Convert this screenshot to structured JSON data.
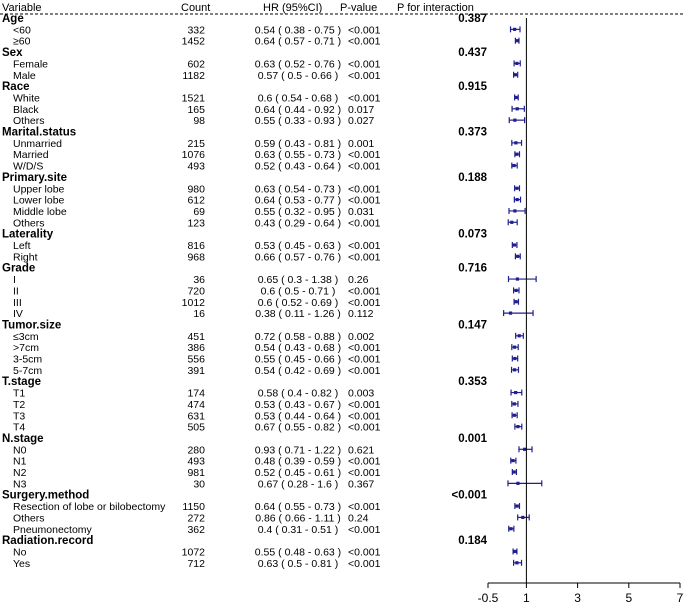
{
  "colors": {
    "ci": "#1f1f8f",
    "point": "#1f1f8f",
    "axis": "#000000",
    "text": "#000000"
  },
  "headers": {
    "variable": "Variable",
    "count": "Count",
    "hr": "HR (95%CI)",
    "pvalue": "P-value",
    "pint": "P for interaction"
  },
  "chart_data": {
    "type": "forest",
    "xlim": [
      -0.5,
      7
    ],
    "xticks": [
      "-0.5",
      "1",
      "3",
      "5",
      "7"
    ],
    "xtick_values": [
      -0.5,
      1,
      3,
      5,
      7
    ],
    "reference_line": 1,
    "groups": [
      {
        "name": "Age",
        "p_interaction": "0.387",
        "rows": [
          {
            "label": "<60",
            "count": "332",
            "hr_text": "0.54 ( 0.38 - 0.75 )",
            "p": "<0.001",
            "hr": 0.54,
            "lo": 0.38,
            "hi": 0.75
          },
          {
            "label": "≥60",
            "count": "1452",
            "hr_text": "0.64 ( 0.57 - 0.71 )",
            "p": "<0.001",
            "hr": 0.64,
            "lo": 0.57,
            "hi": 0.71
          }
        ]
      },
      {
        "name": "Sex",
        "p_interaction": "0.437",
        "rows": [
          {
            "label": "Female",
            "count": "602",
            "hr_text": "0.63 ( 0.52 - 0.76 )",
            "p": "<0.001",
            "hr": 0.63,
            "lo": 0.52,
            "hi": 0.76
          },
          {
            "label": "Male",
            "count": "1182",
            "hr_text": "0.57 ( 0.5 - 0.66 )",
            "p": "<0.001",
            "hr": 0.57,
            "lo": 0.5,
            "hi": 0.66
          }
        ]
      },
      {
        "name": "Race",
        "p_interaction": "0.915",
        "rows": [
          {
            "label": "White",
            "count": "1521",
            "hr_text": "0.6 ( 0.54 - 0.68 )",
            "p": "<0.001",
            "hr": 0.6,
            "lo": 0.54,
            "hi": 0.68
          },
          {
            "label": "Black",
            "count": "165",
            "hr_text": "0.64 ( 0.44 - 0.92 )",
            "p": "0.017",
            "hr": 0.64,
            "lo": 0.44,
            "hi": 0.92
          },
          {
            "label": "Others",
            "count": "98",
            "hr_text": "0.55 ( 0.33 - 0.93 )",
            "p": "0.027",
            "hr": 0.55,
            "lo": 0.33,
            "hi": 0.93
          }
        ]
      },
      {
        "name": "Marital.status",
        "p_interaction": "0.373",
        "rows": [
          {
            "label": "Unmarried",
            "count": "215",
            "hr_text": "0.59 ( 0.43 - 0.81 )",
            "p": "0.001",
            "hr": 0.59,
            "lo": 0.43,
            "hi": 0.81
          },
          {
            "label": "Married",
            "count": "1076",
            "hr_text": "0.63 ( 0.55 - 0.73 )",
            "p": "<0.001",
            "hr": 0.63,
            "lo": 0.55,
            "hi": 0.73
          },
          {
            "label": "W/D/S",
            "count": "493",
            "hr_text": "0.52 ( 0.43 - 0.64 )",
            "p": "<0.001",
            "hr": 0.52,
            "lo": 0.43,
            "hi": 0.64
          }
        ]
      },
      {
        "name": "Primary.site",
        "p_interaction": "0.188",
        "rows": [
          {
            "label": "Upper lobe",
            "count": "980",
            "hr_text": "0.63 ( 0.54 - 0.73 )",
            "p": "<0.001",
            "hr": 0.63,
            "lo": 0.54,
            "hi": 0.73
          },
          {
            "label": "Lower lobe",
            "count": "612",
            "hr_text": "0.64 ( 0.53 - 0.77 )",
            "p": "<0.001",
            "hr": 0.64,
            "lo": 0.53,
            "hi": 0.77
          },
          {
            "label": "Middle lobe",
            "count": "69",
            "hr_text": "0.55 ( 0.32 - 0.95 )",
            "p": "0.031",
            "hr": 0.55,
            "lo": 0.32,
            "hi": 0.95
          },
          {
            "label": "Others",
            "count": "123",
            "hr_text": "0.43 ( 0.29 - 0.64 )",
            "p": "<0.001",
            "hr": 0.43,
            "lo": 0.29,
            "hi": 0.64
          }
        ]
      },
      {
        "name": "Laterality",
        "p_interaction": "0.073",
        "rows": [
          {
            "label": "Left",
            "count": "816",
            "hr_text": "0.53 ( 0.45 - 0.63 )",
            "p": "<0.001",
            "hr": 0.53,
            "lo": 0.45,
            "hi": 0.63
          },
          {
            "label": "Right",
            "count": "968",
            "hr_text": "0.66 ( 0.57 - 0.76 )",
            "p": "<0.001",
            "hr": 0.66,
            "lo": 0.57,
            "hi": 0.76
          }
        ]
      },
      {
        "name": "Grade",
        "p_interaction": "0.716",
        "rows": [
          {
            "label": "I",
            "count": "36",
            "hr_text": "0.65 ( 0.3 - 1.38 )",
            "p": "0.26",
            "hr": 0.65,
            "lo": 0.3,
            "hi": 1.38
          },
          {
            "label": "II",
            "count": "720",
            "hr_text": "0.6 ( 0.5 - 0.71 )",
            "p": "<0.001",
            "hr": 0.6,
            "lo": 0.5,
            "hi": 0.71
          },
          {
            "label": "III",
            "count": "1012",
            "hr_text": "0.6 ( 0.52 - 0.69 )",
            "p": "<0.001",
            "hr": 0.6,
            "lo": 0.52,
            "hi": 0.69
          },
          {
            "label": "IV",
            "count": "16",
            "hr_text": "0.38 ( 0.11 - 1.26 )",
            "p": "0.112",
            "hr": 0.38,
            "lo": 0.11,
            "hi": 1.26
          }
        ]
      },
      {
        "name": "Tumor.size",
        "p_interaction": "0.147",
        "rows": [
          {
            "label": "≤3cm",
            "count": "451",
            "hr_text": "0.72 ( 0.58 - 0.88 )",
            "p": "0.002",
            "hr": 0.72,
            "lo": 0.58,
            "hi": 0.88
          },
          {
            "label": ">7cm",
            "count": "386",
            "hr_text": "0.54 ( 0.43 - 0.68 )",
            "p": "<0.001",
            "hr": 0.54,
            "lo": 0.43,
            "hi": 0.68
          },
          {
            "label": "3-5cm",
            "count": "556",
            "hr_text": "0.55 ( 0.45 - 0.66 )",
            "p": "<0.001",
            "hr": 0.55,
            "lo": 0.45,
            "hi": 0.66
          },
          {
            "label": "5-7cm",
            "count": "391",
            "hr_text": "0.54 ( 0.42 - 0.69 )",
            "p": "<0.001",
            "hr": 0.54,
            "lo": 0.42,
            "hi": 0.69
          }
        ]
      },
      {
        "name": "T.stage",
        "p_interaction": "0.353",
        "rows": [
          {
            "label": "T1",
            "count": "174",
            "hr_text": "0.58 ( 0.4 - 0.82 )",
            "p": "0.003",
            "hr": 0.58,
            "lo": 0.4,
            "hi": 0.82
          },
          {
            "label": "T2",
            "count": "474",
            "hr_text": "0.53 ( 0.43 - 0.67 )",
            "p": "<0.001",
            "hr": 0.53,
            "lo": 0.43,
            "hi": 0.67
          },
          {
            "label": "T3",
            "count": "631",
            "hr_text": "0.53 ( 0.44 - 0.64 )",
            "p": "<0.001",
            "hr": 0.53,
            "lo": 0.44,
            "hi": 0.64
          },
          {
            "label": "T4",
            "count": "505",
            "hr_text": "0.67 ( 0.55 - 0.82 )",
            "p": "<0.001",
            "hr": 0.67,
            "lo": 0.55,
            "hi": 0.82
          }
        ]
      },
      {
        "name": "N.stage",
        "p_interaction": "0.001",
        "rows": [
          {
            "label": "N0",
            "count": "280",
            "hr_text": "0.93 ( 0.71 - 1.22 )",
            "p": "0.621",
            "hr": 0.93,
            "lo": 0.71,
            "hi": 1.22
          },
          {
            "label": "N1",
            "count": "493",
            "hr_text": "0.48 ( 0.39 - 0.59 )",
            "p": "<0.001",
            "hr": 0.48,
            "lo": 0.39,
            "hi": 0.59
          },
          {
            "label": "N2",
            "count": "981",
            "hr_text": "0.52 ( 0.45 - 0.61 )",
            "p": "<0.001",
            "hr": 0.52,
            "lo": 0.45,
            "hi": 0.61
          },
          {
            "label": "N3",
            "count": "30",
            "hr_text": "0.67 ( 0.28 - 1.6 )",
            "p": "0.367",
            "hr": 0.67,
            "lo": 0.28,
            "hi": 1.6
          }
        ]
      },
      {
        "name": "Surgery.method",
        "p_interaction": "<0.001",
        "rows": [
          {
            "label": "Resection of lobe or bilobectomy",
            "count": "1150",
            "hr_text": "0.64 ( 0.55 - 0.73 )",
            "p": "<0.001",
            "hr": 0.64,
            "lo": 0.55,
            "hi": 0.73
          },
          {
            "label": "Others",
            "count": "272",
            "hr_text": "0.86 ( 0.66 - 1.11 )",
            "p": "0.24",
            "hr": 0.86,
            "lo": 0.66,
            "hi": 1.11
          },
          {
            "label": "Pneumonectomy",
            "count": "362",
            "hr_text": "0.4 ( 0.31 - 0.51 )",
            "p": "<0.001",
            "hr": 0.4,
            "lo": 0.31,
            "hi": 0.51
          }
        ]
      },
      {
        "name": "Radiation.record",
        "p_interaction": "0.184",
        "rows": [
          {
            "label": "No",
            "count": "1072",
            "hr_text": "0.55 ( 0.48 - 0.63 )",
            "p": "<0.001",
            "hr": 0.55,
            "lo": 0.48,
            "hi": 0.63
          },
          {
            "label": "Yes",
            "count": "712",
            "hr_text": "0.63 ( 0.5 - 0.81 )",
            "p": "<0.001",
            "hr": 0.63,
            "lo": 0.5,
            "hi": 0.81
          }
        ]
      }
    ]
  }
}
